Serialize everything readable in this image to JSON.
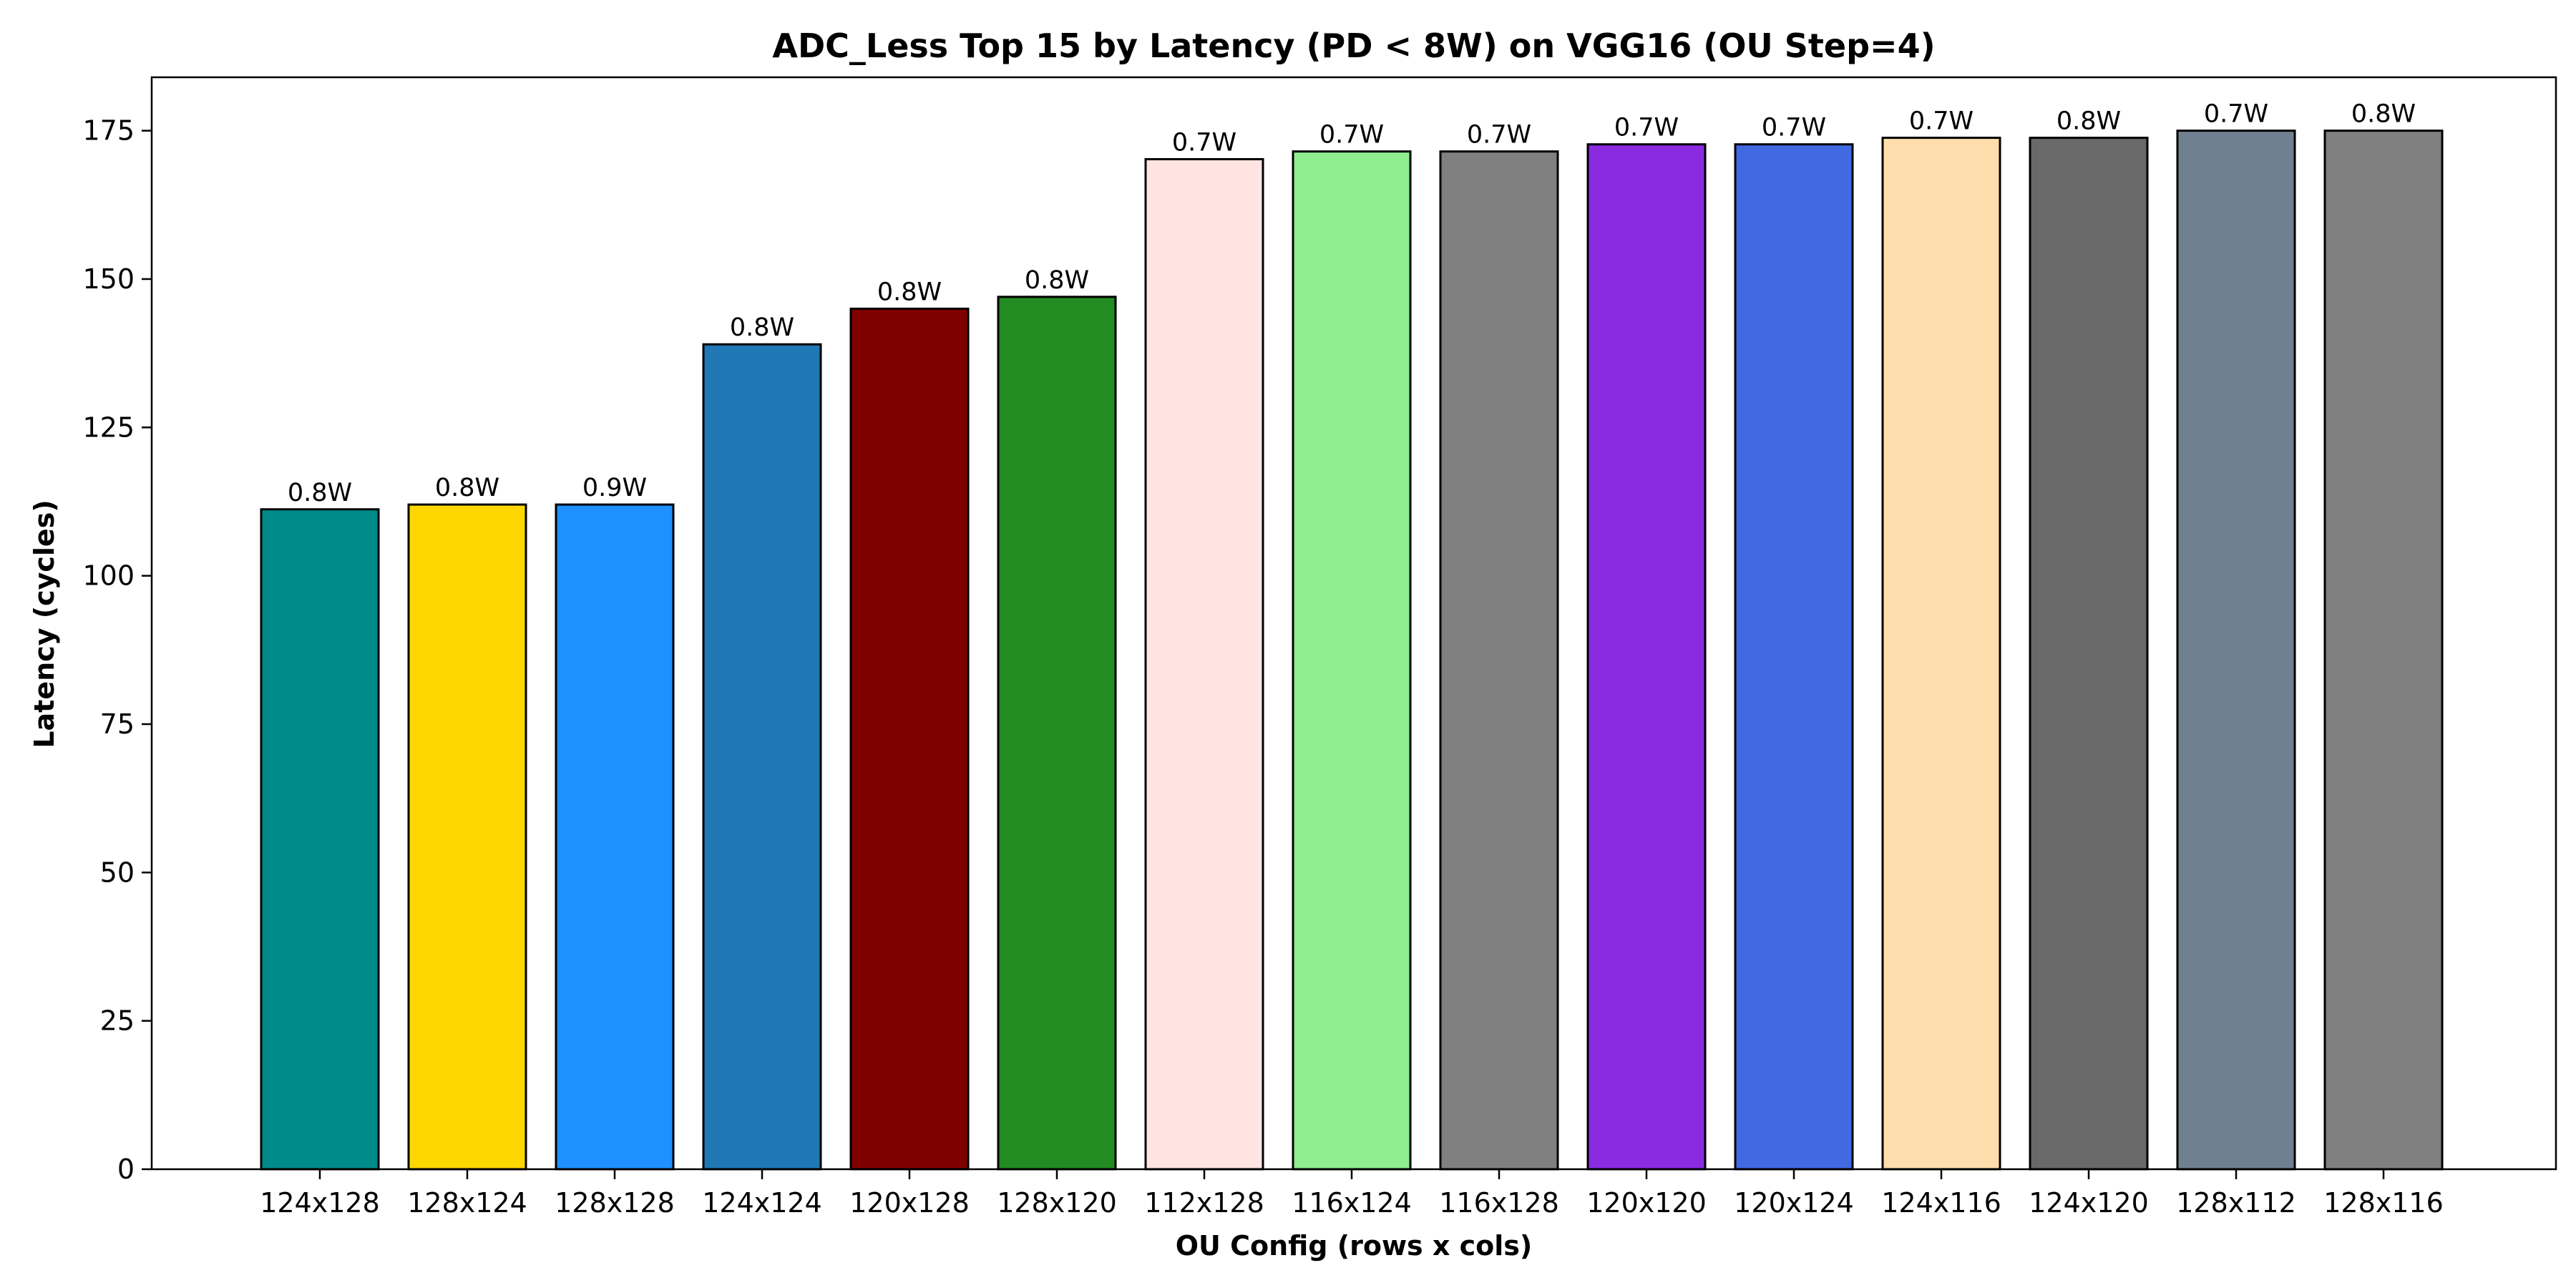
{
  "chart_data": {
    "type": "bar",
    "title": "ADC_Less Top 15 by Latency (PD < 8W) on VGG16 (OU Step=4)",
    "xlabel": "OU Config (rows x cols)",
    "ylabel": "Latency (cycles)",
    "ylim": [
      0,
      184
    ],
    "yticks": [
      0,
      25,
      50,
      75,
      100,
      125,
      150,
      175
    ],
    "grid": false,
    "categories": [
      "124x128",
      "128x124",
      "128x128",
      "124x124",
      "120x128",
      "128x120",
      "112x128",
      "116x124",
      "116x128",
      "120x120",
      "120x124",
      "124x116",
      "124x120",
      "128x112",
      "128x116"
    ],
    "values": [
      111.2,
      112,
      112,
      139,
      145,
      147,
      170.2,
      171.5,
      171.5,
      172.7,
      172.7,
      173.8,
      173.8,
      175,
      175
    ],
    "data_labels": [
      "0.8W",
      "0.8W",
      "0.9W",
      "0.8W",
      "0.8W",
      "0.8W",
      "0.7W",
      "0.7W",
      "0.7W",
      "0.7W",
      "0.7W",
      "0.7W",
      "0.8W",
      "0.7W",
      "0.8W"
    ],
    "colors": [
      "#008b8b",
      "#ffd700",
      "#1e90ff",
      "#1f77b4",
      "#800000",
      "#228b22",
      "#ffe4e1",
      "#90ee90",
      "#808080",
      "#8a2be2",
      "#4169e1",
      "#ffdead",
      "#696969",
      "#708090",
      "#808080"
    ]
  }
}
